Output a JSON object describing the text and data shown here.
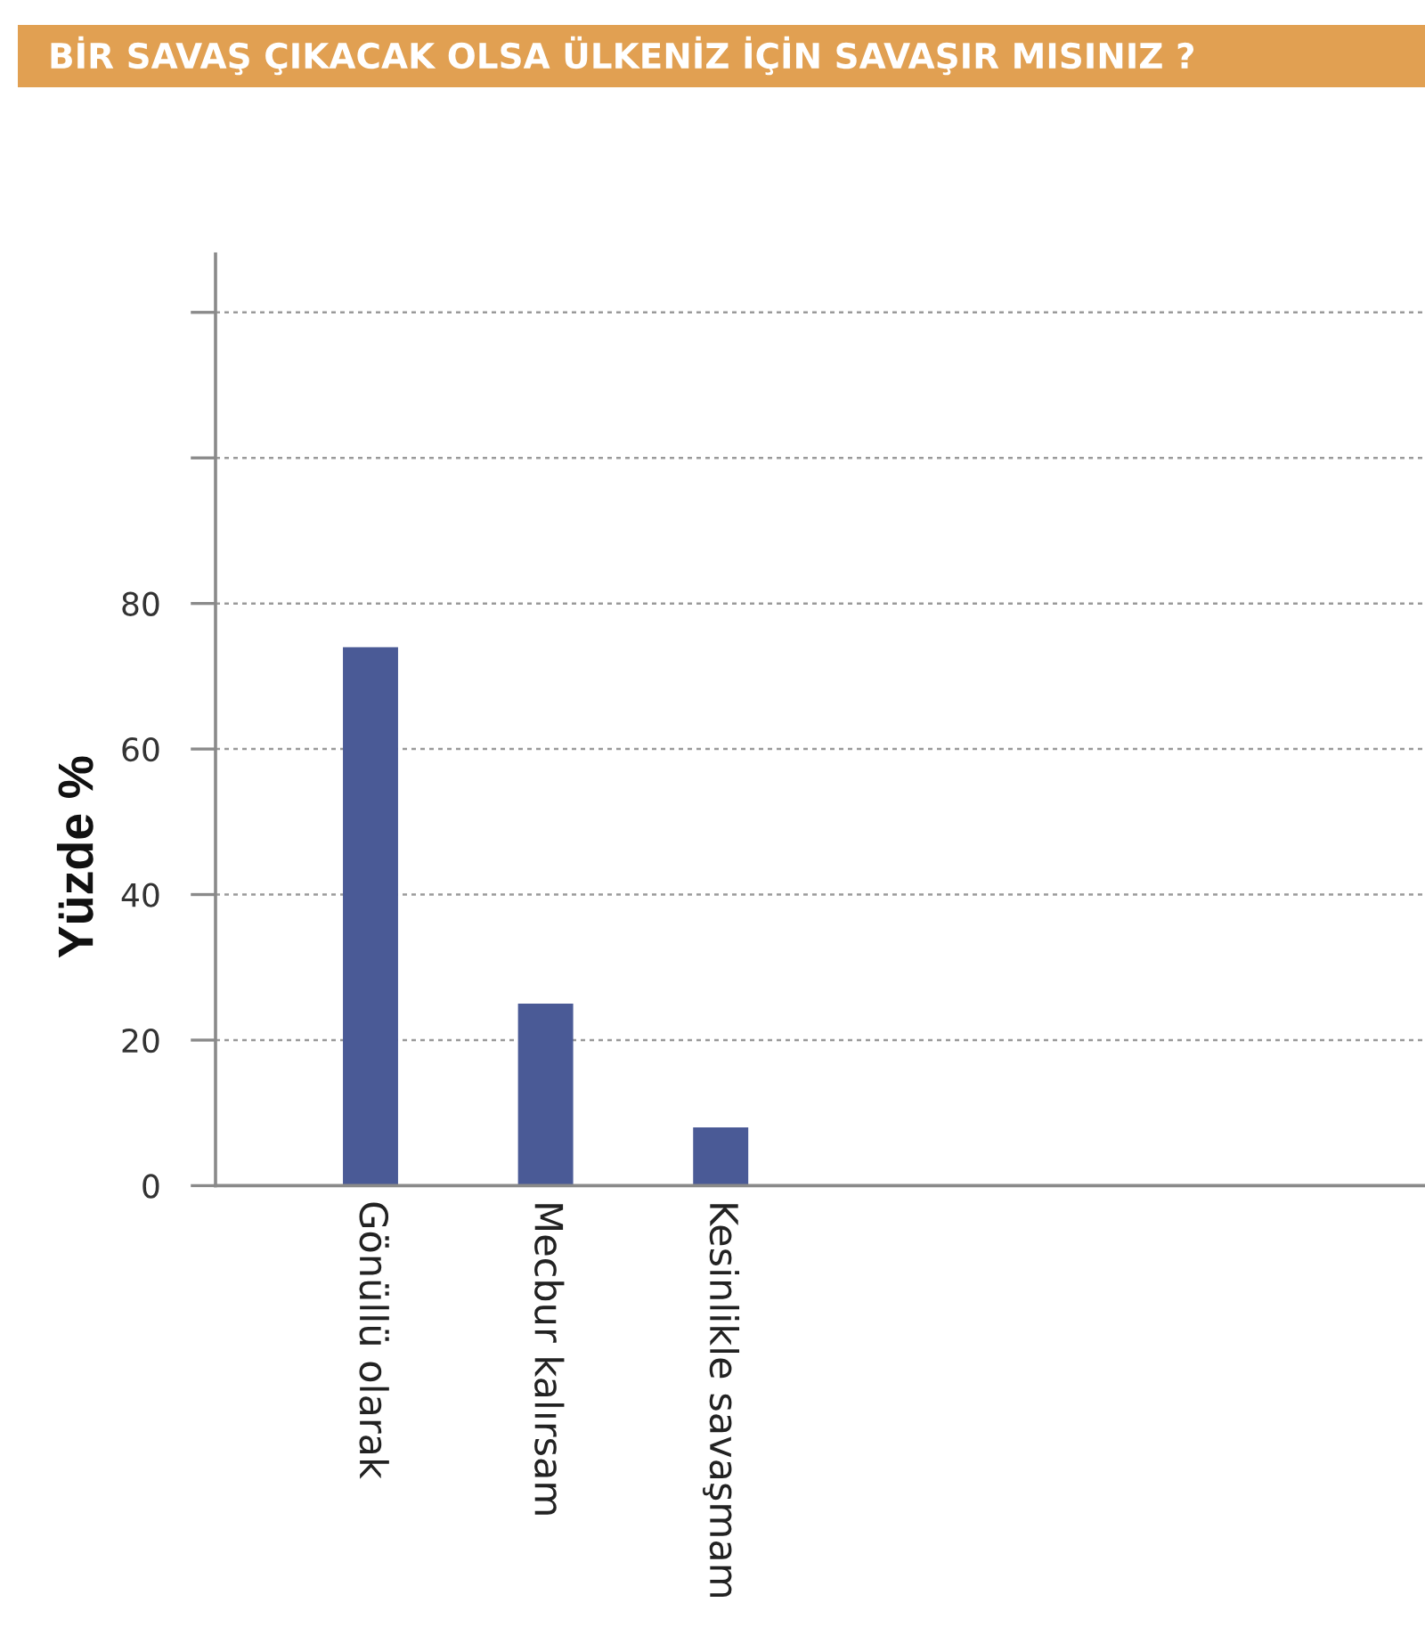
{
  "chart_data": {
    "type": "bar",
    "title": "BİR SAVAŞ ÇIKACAK OLSA ÜLKENİZ İÇİN SAVAŞIR MISINIZ ?",
    "ylabel": "Yüzde %",
    "categories": [
      "Gönüllü olarak",
      "Mecbur kalırsam",
      "Kesinlikle savaşmam"
    ],
    "values": [
      74,
      25,
      8
    ],
    "color": "#4a5a96",
    "ylim": [
      0,
      128
    ],
    "yticks": [
      0,
      20,
      40,
      60,
      80,
      {
        "value": 100,
        "label": null
      },
      {
        "value": 120,
        "label": null
      }
    ],
    "grid": "y"
  }
}
